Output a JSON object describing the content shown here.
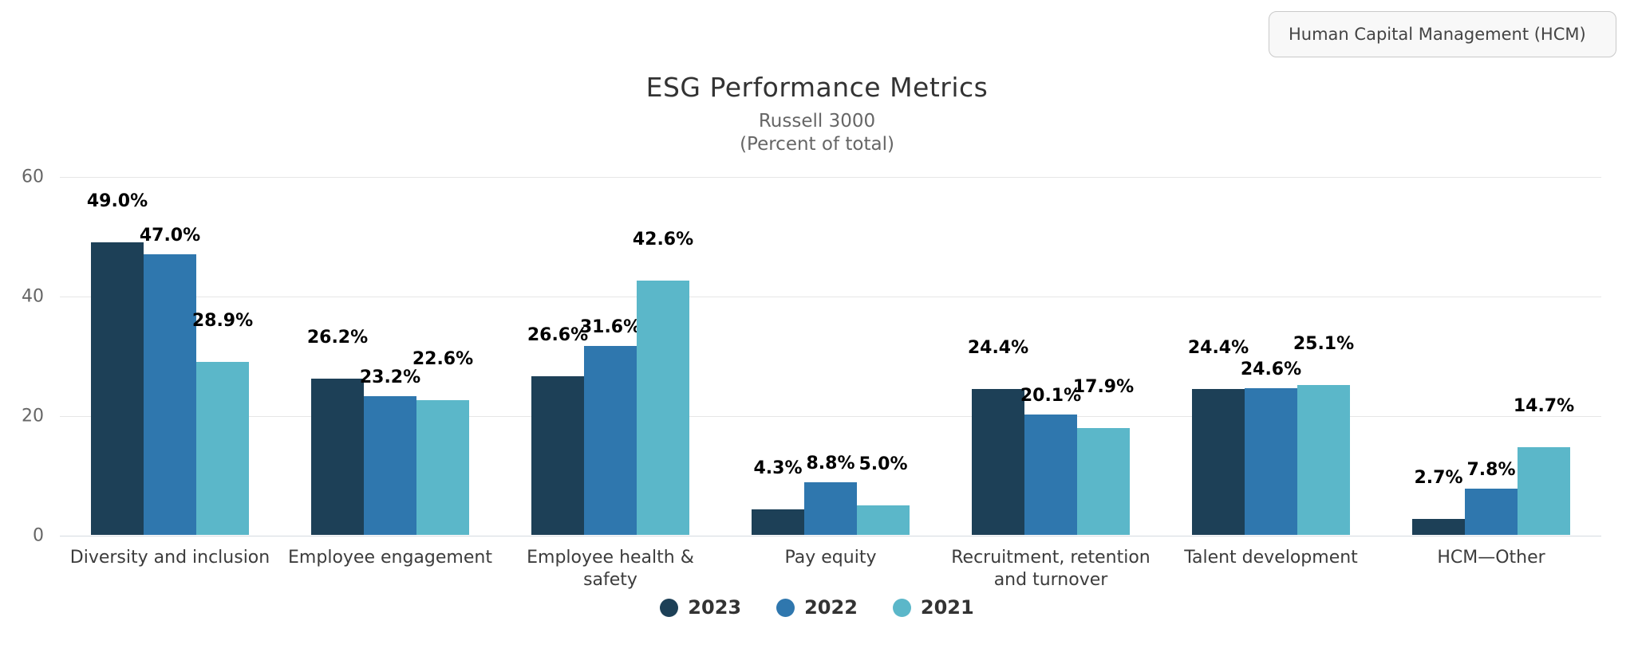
{
  "header": {
    "filter_label": "Human Capital Management (HCM)"
  },
  "chart_data": {
    "type": "bar",
    "title": "ESG Performance Metrics",
    "subtitle_line1": "Russell 3000",
    "subtitle_line2": "(Percent of total)",
    "categories": [
      "Diversity and inclusion",
      "Employee engagement",
      "Employee health & safety",
      "Pay equity",
      "Recruitment, retention and turnover",
      "Talent development",
      "HCM—Other"
    ],
    "series": [
      {
        "name": "2023",
        "color": "#1d4057",
        "values": [
          49.0,
          26.2,
          26.6,
          4.3,
          24.4,
          24.4,
          2.7
        ]
      },
      {
        "name": "2022",
        "color": "#2f77ae",
        "values": [
          47.0,
          23.2,
          31.6,
          8.8,
          20.1,
          24.6,
          7.8
        ]
      },
      {
        "name": "2021",
        "color": "#5bb7c9",
        "values": [
          28.9,
          22.6,
          42.6,
          5.0,
          17.9,
          25.1,
          14.7
        ]
      }
    ],
    "value_suffix": "%",
    "ylabel": "",
    "xlabel": "",
    "ylim": [
      0,
      60
    ],
    "yticks": [
      0,
      20,
      40,
      60
    ],
    "grid": true,
    "legend_position": "bottom",
    "gridline_color": "#e6e6e6",
    "axis_line_color": "#d5dbe1",
    "data_label_color": "#000000",
    "tick_label_color": "#666666",
    "category_label_color": "#3c3c3c"
  }
}
